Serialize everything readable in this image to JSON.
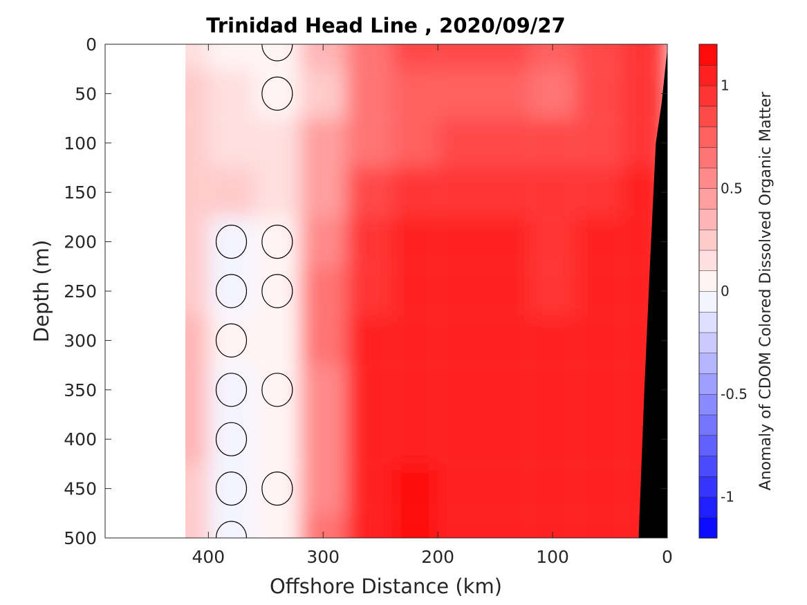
{
  "chart_data": {
    "type": "heatmap",
    "subtype": "filled-contour section",
    "title": "Trinidad Head Line , 2020/09/27",
    "xlabel": "Offshore Distance (km)",
    "ylabel": "Depth (m)",
    "xlim": [
      490,
      0
    ],
    "ylim": [
      0,
      500
    ],
    "x_reversed": true,
    "y_reversed": true,
    "xticks": [
      400,
      300,
      200,
      100,
      0
    ],
    "yticks": [
      0,
      50,
      100,
      150,
      200,
      250,
      300,
      350,
      400,
      450,
      500
    ],
    "data_extent_km": [
      420,
      0
    ],
    "bathymetry_color": "#000000",
    "bathymetry_outline": [
      [
        0,
        5
      ],
      [
        5,
        60
      ],
      [
        10,
        100
      ],
      [
        15,
        220
      ],
      [
        20,
        350
      ],
      [
        25,
        500
      ]
    ],
    "colorbar": {
      "label": "Anomaly of CDOM Colored Dissolved Organic Matter",
      "range": [
        -1.2,
        1.2
      ],
      "levels": 24,
      "ticks": [
        1,
        0.5,
        0,
        -0.5,
        -1
      ],
      "colormap": "blue-white-red",
      "negative_color": "#0000ff",
      "positive_color": "#ff0000"
    },
    "depths": [
      0,
      50,
      100,
      150,
      200,
      250,
      300,
      350,
      400,
      450,
      500
    ],
    "distance_grid_km": [
      420,
      380,
      340,
      300,
      260,
      220,
      180,
      140,
      100,
      60,
      20
    ],
    "values": [
      [
        0.15,
        0.05,
        0.0,
        0.3,
        0.65,
        0.85,
        0.85,
        0.8,
        0.75,
        0.85,
        0.9
      ],
      [
        0.2,
        0.1,
        0.0,
        0.25,
        0.6,
        0.75,
        0.75,
        0.7,
        0.65,
        0.8,
        0.9
      ],
      [
        0.2,
        0.15,
        0.1,
        0.4,
        0.6,
        0.75,
        0.8,
        0.85,
        0.8,
        0.85,
        0.9
      ],
      [
        0.25,
        0.2,
        0.15,
        0.45,
        0.85,
        0.95,
        0.95,
        0.9,
        0.9,
        0.95,
        1.0
      ],
      [
        0.2,
        -0.05,
        0.0,
        0.55,
        0.95,
        1.05,
        1.0,
        1.0,
        0.95,
        1.0,
        1.05
      ],
      [
        0.2,
        -0.05,
        0.0,
        0.6,
        0.95,
        1.0,
        1.0,
        1.0,
        0.95,
        1.0,
        1.05
      ],
      [
        0.3,
        0.0,
        0.05,
        0.6,
        1.0,
        1.05,
        1.05,
        1.05,
        1.0,
        1.05,
        1.05
      ],
      [
        0.3,
        -0.05,
        0.0,
        0.55,
        1.0,
        1.05,
        1.05,
        1.05,
        1.0,
        1.0,
        1.05
      ],
      [
        0.3,
        -0.05,
        0.05,
        0.5,
        1.0,
        1.05,
        1.05,
        1.05,
        1.05,
        1.05,
        1.05
      ],
      [
        0.25,
        -0.1,
        0.0,
        0.55,
        1.0,
        1.1,
        1.05,
        1.05,
        1.05,
        1.05,
        1.05
      ],
      [
        0.2,
        -0.05,
        0.05,
        0.6,
        1.05,
        1.1,
        1.05,
        1.05,
        1.05,
        1.05,
        1.05
      ]
    ]
  }
}
